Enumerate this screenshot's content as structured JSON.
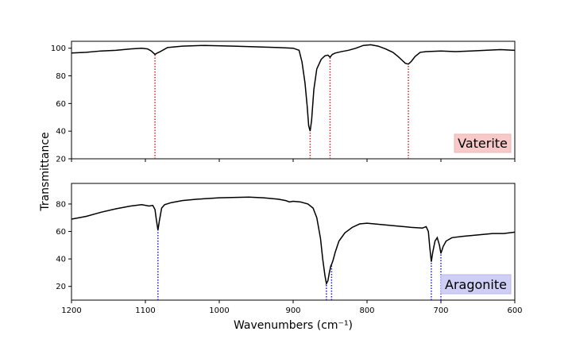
{
  "chart_data": [
    {
      "type": "line",
      "panel": "top",
      "label": "Vaterite",
      "label_bg": "#f7c9c9",
      "line_color": "#000000",
      "marker_color": "#d62728",
      "xlim": [
        1200,
        600
      ],
      "ylim": [
        20,
        105
      ],
      "yticks": [
        20,
        40,
        60,
        80,
        100
      ],
      "xticks": [
        1200,
        1100,
        1000,
        900,
        800,
        700,
        600
      ],
      "xtick_labels_shown": false,
      "peak_markers": [
        1087,
        877,
        850,
        744
      ],
      "series": [
        {
          "x": [
            1200,
            1180,
            1160,
            1140,
            1120,
            1105,
            1097,
            1092,
            1089,
            1087,
            1084,
            1080,
            1070,
            1050,
            1020,
            980,
            950,
            920,
            900,
            892,
            888,
            884,
            881,
            879,
            877,
            875,
            872,
            868,
            862,
            857,
            853,
            850,
            847,
            843,
            835,
            825,
            815,
            805,
            795,
            785,
            775,
            765,
            758,
            752,
            748,
            744,
            740,
            735,
            728,
            720,
            700,
            680,
            660,
            640,
            620,
            600
          ],
          "y": [
            96.5,
            97,
            98,
            98.5,
            99.5,
            100,
            99.5,
            98,
            96.5,
            95.5,
            96.5,
            97.5,
            100.5,
            101.5,
            102,
            101.5,
            101,
            100.5,
            100,
            98.5,
            90,
            75,
            58,
            44,
            40,
            48,
            70,
            85,
            92,
            94.5,
            95,
            93.5,
            95.5,
            96.5,
            97.5,
            98.5,
            100,
            102,
            102.5,
            101.5,
            99.5,
            97,
            94,
            91,
            89,
            88.5,
            90.5,
            94,
            97,
            97.5,
            98,
            97.5,
            98,
            98.5,
            99,
            98.5
          ]
        }
      ]
    },
    {
      "type": "line",
      "panel": "bottom",
      "label": "Aragonite",
      "label_bg": "#cfcff5",
      "line_color": "#000000",
      "marker_color": "#1f1fd6",
      "xlim": [
        1200,
        600
      ],
      "ylim": [
        10,
        95
      ],
      "yticks": [
        20,
        40,
        60,
        80
      ],
      "xticks": [
        1200,
        1100,
        1000,
        900,
        800,
        700,
        600
      ],
      "xtick_labels": [
        "1200",
        "1100",
        "1000",
        "900",
        "800",
        "700",
        "600"
      ],
      "xlabel": "Wavenumbers (cm⁻¹)",
      "ylabel": "Transmittance",
      "peak_markers": [
        1083,
        855,
        848,
        713,
        700
      ],
      "series": [
        {
          "x": [
            1200,
            1180,
            1160,
            1140,
            1120,
            1105,
            1095,
            1090,
            1087,
            1085,
            1083,
            1081,
            1078,
            1074,
            1065,
            1050,
            1030,
            1000,
            960,
            940,
            920,
            910,
            905,
            900,
            890,
            880,
            873,
            868,
            863,
            860,
            857,
            855,
            853,
            851,
            849,
            848,
            846,
            843,
            838,
            830,
            820,
            810,
            800,
            790,
            780,
            760,
            740,
            725,
            720,
            717,
            715,
            713,
            711,
            708,
            705,
            702,
            700,
            697,
            693,
            685,
            670,
            650,
            630,
            615,
            600
          ],
          "y": [
            69,
            71,
            74,
            76.5,
            78.5,
            79.5,
            78.5,
            79,
            76,
            68,
            61,
            68,
            77,
            79.5,
            81,
            82.5,
            83.5,
            84.5,
            85,
            84.5,
            83.5,
            82.5,
            81.5,
            82,
            81.5,
            80,
            77,
            70,
            55,
            40,
            28,
            22,
            24,
            30,
            35,
            36,
            39,
            45,
            53,
            59,
            63,
            65.5,
            66,
            65.5,
            65,
            64,
            63,
            62.5,
            63.5,
            60,
            48,
            38,
            45,
            53,
            55.5,
            50,
            44,
            49,
            53,
            55.5,
            56.5,
            57.5,
            58.5,
            58.5,
            59.5
          ]
        }
      ]
    }
  ]
}
